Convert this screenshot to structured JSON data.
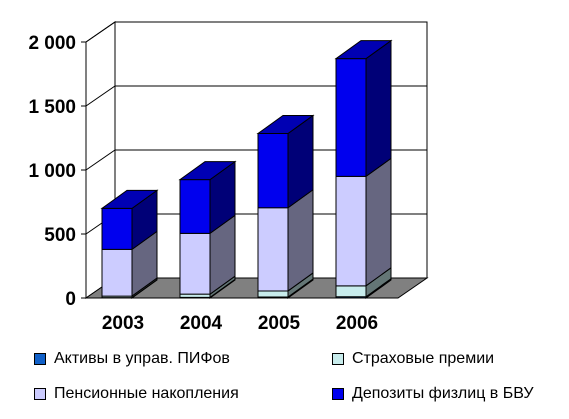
{
  "chart_data": {
    "type": "bar",
    "stacked": true,
    "three_d": true,
    "title": "",
    "xlabel": "",
    "ylabel": "",
    "categories": [
      "2003",
      "2004",
      "2005",
      "2006"
    ],
    "ylim": [
      0,
      2000
    ],
    "yticks": [
      0,
      500,
      1000,
      1500,
      2000
    ],
    "ytick_labels": [
      "0",
      "500",
      "1 000",
      "1 500",
      "2 000"
    ],
    "grid": true,
    "legend_position": "bottom",
    "series": [
      {
        "name": "Активы в управ. ПИФов",
        "color": "#1060c8",
        "values": [
          3,
          5,
          8,
          10
        ]
      },
      {
        "name": "Страховые премии",
        "color": "#c8ecec",
        "values": [
          12,
          25,
          47,
          85
        ]
      },
      {
        "name": "Пенсионные накопления",
        "color": "#ccccff",
        "values": [
          365,
          475,
          650,
          855
        ]
      },
      {
        "name": "Депозиты физлиц в БВУ",
        "color": "#0000ee",
        "values": [
          320,
          420,
          580,
          920
        ]
      }
    ]
  },
  "legend": {
    "items": [
      {
        "label": "Активы в управ. ПИФов",
        "color": "#1060c8"
      },
      {
        "label": "Страховые премии",
        "color": "#c8ecec"
      },
      {
        "label": "Пенсионные накопления",
        "color": "#ccccff"
      },
      {
        "label": "Депозиты физлиц в БВУ",
        "color": "#0000ee"
      }
    ]
  }
}
